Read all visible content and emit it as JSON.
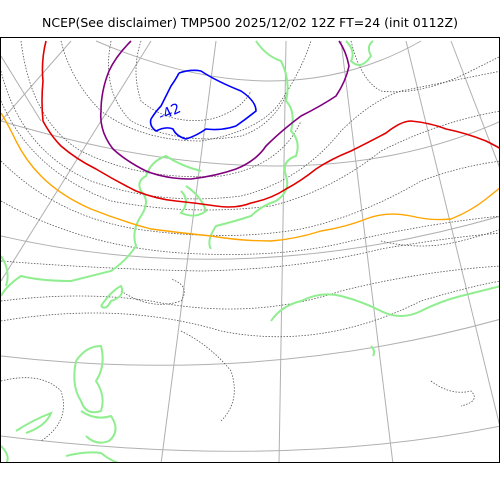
{
  "title": "NCEP(See disclaimer) TMP500 2025/12/02 12Z FT=24 (init 0112Z)",
  "map": {
    "contour_labels": [
      {
        "text": "-42"
      }
    ],
    "colors": {
      "coastline": "#90ee90",
      "graticule": "#b0b0b0",
      "isotherm_dotted": "#555555",
      "blue_isotherm": "#0000ff",
      "purple_isotherm": "#800080",
      "red_isotherm": "#e00000",
      "orange_isotherm": "#ffa500"
    }
  }
}
